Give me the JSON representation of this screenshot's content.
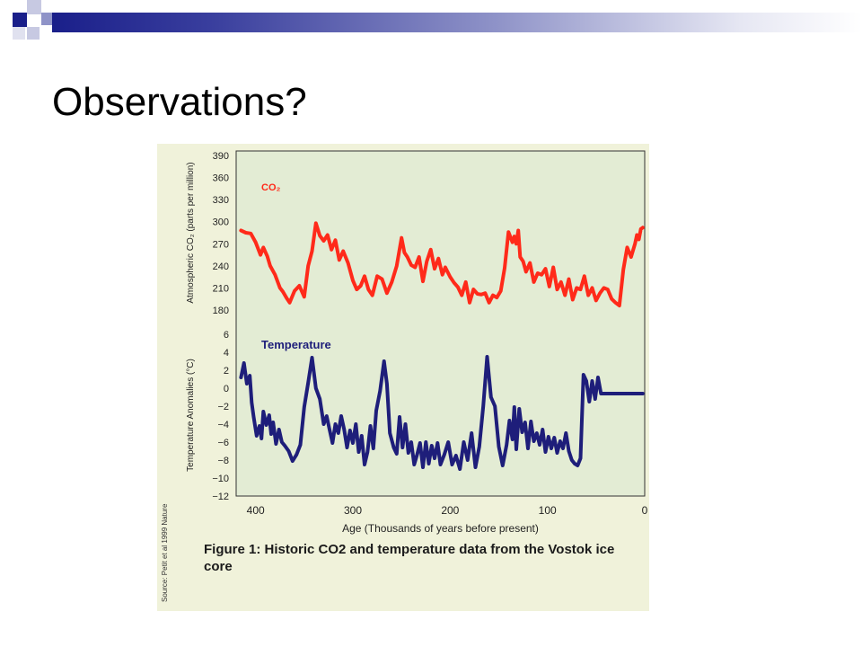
{
  "slide": {
    "title": "Observations?"
  },
  "colors": {
    "accent_dark": "#1a1f8a",
    "accent_light": "#8f93c8",
    "co2_line": "#ff2a1a",
    "temp_line": "#1e1e7a",
    "panel_bg": "#f0f2da",
    "plot_bg": "#e3ecd4"
  },
  "figure": {
    "caption": "Figure 1: Historic CO2 and temperature data from the Vostok ice core",
    "source": "Source: Petit et al 1999 Nature"
  },
  "chart_data": [
    {
      "type": "line",
      "title": "",
      "series_label": "CO₂",
      "ylabel": "Atmospheric CO₂ (parts per million)",
      "xlabel": "Age (Thousands of years before present)",
      "ylim": [
        180,
        390
      ],
      "yticks": [
        180,
        210,
        240,
        270,
        300,
        330,
        360,
        390
      ],
      "xlim": [
        420,
        0
      ],
      "xticks": [
        400,
        300,
        200,
        100,
        0
      ],
      "grid": false,
      "x": [
        415,
        410,
        405,
        400,
        395,
        392,
        388,
        385,
        380,
        375,
        372,
        368,
        365,
        360,
        355,
        350,
        346,
        342,
        338,
        334,
        330,
        326,
        322,
        318,
        314,
        310,
        305,
        300,
        296,
        292,
        288,
        284,
        280,
        275,
        270,
        265,
        260,
        255,
        250,
        247,
        244,
        240,
        236,
        232,
        228,
        224,
        220,
        216,
        212,
        208,
        205,
        200,
        196,
        192,
        188,
        184,
        180,
        176,
        172,
        168,
        164,
        160,
        156,
        152,
        148,
        144,
        140,
        136,
        134,
        132,
        130,
        128,
        125,
        122,
        118,
        114,
        110,
        106,
        102,
        98,
        94,
        90,
        86,
        82,
        78,
        74,
        70,
        66,
        62,
        58,
        54,
        50,
        46,
        42,
        38,
        34,
        30,
        26,
        22,
        18,
        14,
        10,
        8,
        6,
        4,
        2
      ],
      "values": [
        288,
        285,
        284,
        272,
        255,
        265,
        253,
        240,
        228,
        210,
        205,
        196,
        190,
        206,
        213,
        198,
        240,
        260,
        298,
        281,
        274,
        282,
        262,
        275,
        248,
        260,
        244,
        220,
        208,
        213,
        226,
        208,
        200,
        226,
        222,
        203,
        218,
        240,
        278,
        258,
        252,
        241,
        238,
        252,
        219,
        246,
        262,
        236,
        250,
        228,
        238,
        225,
        217,
        211,
        200,
        218,
        190,
        208,
        202,
        201,
        203,
        190,
        200,
        197,
        206,
        237,
        286,
        272,
        280,
        270,
        288,
        252,
        246,
        232,
        244,
        218,
        230,
        228,
        236,
        212,
        238,
        208,
        218,
        200,
        222,
        194,
        210,
        208,
        226,
        200,
        210,
        193,
        203,
        210,
        208,
        195,
        190,
        186,
        235,
        265,
        252,
        270,
        282,
        276,
        290,
        292
      ],
      "label_color": "#ff2a1a"
    },
    {
      "type": "line",
      "title": "",
      "series_label": "Temperature",
      "ylabel": "Temperature Anomalies (°C)",
      "xlabel": "Age (Thousands of years before present)",
      "ylim": [
        -12,
        6
      ],
      "yticks": [
        -12,
        -10,
        -8,
        -6,
        -4,
        -2,
        0,
        2,
        4,
        6
      ],
      "xlim": [
        420,
        0
      ],
      "xticks": [
        400,
        300,
        200,
        100,
        0
      ],
      "grid": false,
      "x": [
        415,
        412,
        409,
        406,
        404,
        402,
        399,
        396,
        394,
        392,
        389,
        386,
        384,
        382,
        379,
        376,
        373,
        370,
        366,
        362,
        358,
        354,
        350,
        346,
        342,
        338,
        334,
        330,
        327,
        324,
        321,
        318,
        315,
        312,
        309,
        306,
        303,
        300,
        297,
        294,
        291,
        288,
        285,
        282,
        279,
        276,
        272,
        268,
        265,
        262,
        258,
        255,
        252,
        249,
        246,
        243,
        240,
        237,
        234,
        231,
        228,
        225,
        222,
        219,
        216,
        213,
        210,
        206,
        202,
        198,
        194,
        190,
        186,
        182,
        178,
        174,
        170,
        166,
        162,
        158,
        154,
        150,
        146,
        142,
        139,
        136,
        134,
        132,
        129,
        126,
        123,
        120,
        117,
        114,
        111,
        108,
        105,
        102,
        99,
        96,
        93,
        90,
        87,
        84,
        81,
        78,
        75,
        72,
        69,
        66,
        63,
        60,
        57,
        54,
        51,
        48,
        45,
        42,
        39,
        36,
        33,
        30,
        27,
        24,
        21,
        18,
        15,
        12,
        9,
        6,
        4,
        2
      ],
      "values": [
        1.2,
        2.8,
        0.5,
        1.4,
        -1.6,
        -3.2,
        -5.3,
        -4.2,
        -5.6,
        -2.6,
        -4.1,
        -3.0,
        -5.1,
        -3.8,
        -6.2,
        -4.6,
        -6.0,
        -6.4,
        -7.0,
        -8.1,
        -7.4,
        -6.3,
        -2.1,
        0.6,
        3.4,
        0.0,
        -1.2,
        -4.0,
        -3.1,
        -4.6,
        -6.1,
        -4.0,
        -5.0,
        -3.1,
        -4.6,
        -6.6,
        -4.7,
        -6.1,
        -4.0,
        -7.1,
        -5.3,
        -8.5,
        -7.1,
        -4.2,
        -6.7,
        -2.5,
        -0.3,
        3.0,
        0.5,
        -5.0,
        -6.6,
        -7.3,
        -3.2,
        -6.6,
        -4.0,
        -7.2,
        -6.0,
        -8.5,
        -7.4,
        -6.1,
        -8.8,
        -6.0,
        -8.4,
        -6.4,
        -7.8,
        -6.1,
        -8.5,
        -7.4,
        -6.0,
        -8.5,
        -7.5,
        -9.0,
        -6.0,
        -8.0,
        -5.0,
        -8.8,
        -6.5,
        -2.0,
        3.5,
        -1.0,
        -2.0,
        -6.5,
        -8.6,
        -6.3,
        -3.6,
        -5.7,
        -2.1,
        -6.8,
        -2.3,
        -4.9,
        -3.8,
        -6.7,
        -3.7,
        -5.9,
        -5.0,
        -6.3,
        -4.6,
        -7.1,
        -5.4,
        -6.7,
        -5.5,
        -7.2,
        -5.9,
        -6.7,
        -5.0,
        -7.0,
        -8.0,
        -8.4,
        -8.6,
        -7.8,
        1.5,
        0.8,
        -1.5,
        0.8,
        -1.2,
        1.2,
        -0.6,
        -0.6,
        -0.6,
        -0.6,
        -0.6,
        -0.6,
        -0.6,
        -0.6,
        -0.6,
        -0.6,
        -0.6,
        -0.6,
        -0.6,
        -0.6,
        -0.6,
        -0.6
      ],
      "label_color": "#1e1e7a"
    }
  ]
}
